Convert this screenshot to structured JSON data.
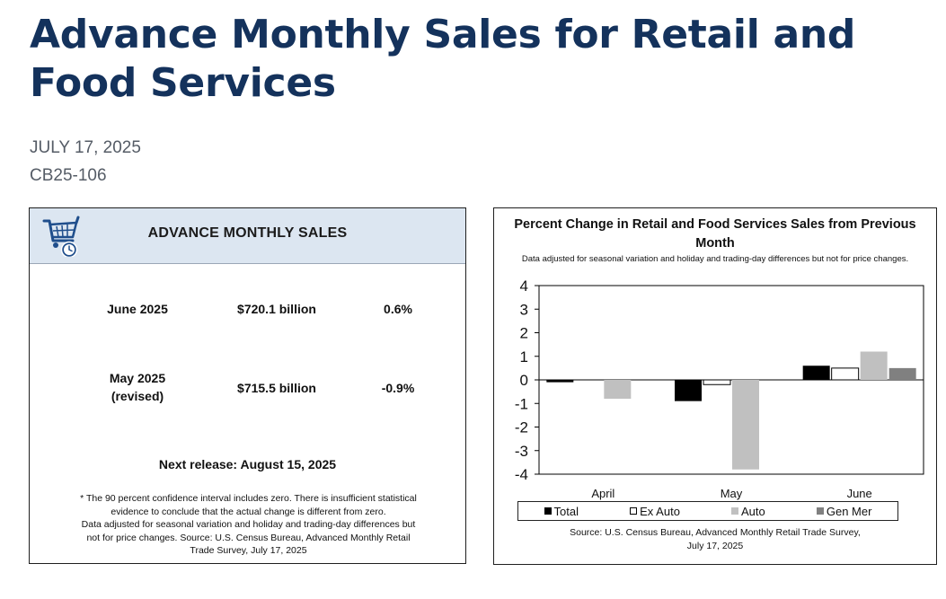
{
  "page": {
    "title": "Advance Monthly Sales for Retail and Food Services",
    "date": "JULY 17, 2025",
    "release_id": "CB25-106"
  },
  "sales_card": {
    "header_title": "ADVANCE MONTHLY SALES",
    "icon": "shopping-cart-clock-icon",
    "rows": [
      {
        "period_line1": "June 2025",
        "period_line2": "",
        "value": "$720.1 billion",
        "change": "0.6%"
      },
      {
        "period_line1": "May 2025",
        "period_line2": "(revised)",
        "value": "$715.5 billion",
        "change": "-0.9%"
      }
    ],
    "next_release": "Next release: August 15, 2025",
    "footnote_lines": [
      "* The 90 percent confidence interval includes zero. There is insufficient statistical",
      "evidence to conclude that the actual change is different from zero.",
      "Data adjusted for seasonal variation and holiday and trading-day differences but",
      "not for price changes. Source: U.S. Census Bureau, Advanced Monthly Retail",
      "Trade Survey, July 17, 2025"
    ]
  },
  "chart_data": {
    "type": "bar",
    "title": "Percent Change in Retail and Food Services Sales from Previous Month",
    "subtitle": "Data adjusted for seasonal variation and holiday and trading-day differences but not for price changes.",
    "categories": [
      "April",
      "May",
      "June"
    ],
    "series": [
      {
        "name": "Total",
        "values": [
          -0.1,
          -0.9,
          0.6
        ],
        "color": "#000000"
      },
      {
        "name": "Ex Auto",
        "values": [
          0.0,
          -0.2,
          0.5
        ],
        "color": "#ffffff"
      },
      {
        "name": "Auto",
        "values": [
          -0.8,
          -3.8,
          1.2
        ],
        "color": "#c0c0c0"
      },
      {
        "name": "Gen Mer",
        "values": [
          0.0,
          0.0,
          0.5
        ],
        "color": "#808080"
      }
    ],
    "ylim": [
      -4,
      4
    ],
    "yticks": [
      "4",
      "3",
      "2",
      "1",
      "0",
      "-1",
      "-2",
      "-3",
      "-4"
    ],
    "legend_position": "bottom",
    "source": [
      "Source: U.S. Census Bureau, Advanced Monthly Retail Trade Survey,",
      "July 17, 2025"
    ]
  }
}
